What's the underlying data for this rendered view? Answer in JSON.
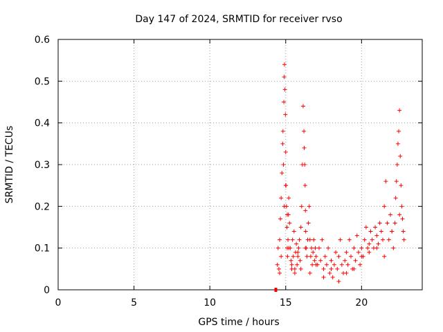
{
  "chart_data": {
    "type": "scatter",
    "title": "Day 147 of 2024, SRMTID for receiver rvso",
    "xlabel": "GPS time / hours",
    "ylabel": "SRMTID / TECUs",
    "xlim": [
      0,
      24
    ],
    "ylim": [
      0,
      0.6
    ],
    "xticks": [
      0,
      5,
      10,
      15,
      20
    ],
    "yticks": [
      0,
      0.1,
      0.2,
      0.3,
      0.4,
      0.5,
      0.6
    ],
    "xtick_labels": [
      "0",
      "5",
      "10",
      "15",
      "20"
    ],
    "ytick_labels": [
      "0",
      "0.1",
      "0.2",
      "0.3",
      "0.4",
      "0.5",
      "0.6"
    ],
    "grid": true,
    "series": [
      {
        "name": "SRMTID",
        "marker": "+",
        "color": "#ff0000",
        "x": [
          14.45,
          14.5,
          14.55,
          14.6,
          14.65,
          14.7,
          14.75,
          14.8,
          14.82,
          14.85,
          14.88,
          14.9,
          14.92,
          14.95,
          14.98,
          15.0,
          15.02,
          15.05,
          15.08,
          15.1,
          15.12,
          15.15,
          15.18,
          15.2,
          15.25,
          15.3,
          15.35,
          15.4,
          15.45,
          15.5,
          15.55,
          15.6,
          15.65,
          15.7,
          15.75,
          15.8,
          15.85,
          15.9,
          15.95,
          16.0,
          16.05,
          16.1,
          16.15,
          16.2,
          16.22,
          16.25,
          16.28,
          16.3,
          16.32,
          16.35,
          16.4,
          16.45,
          16.5,
          16.55,
          16.6,
          16.65,
          16.7,
          16.75,
          16.8,
          16.85,
          16.9,
          16.95,
          17.0,
          17.1,
          17.2,
          17.3,
          17.4,
          17.5,
          17.6,
          17.7,
          17.8,
          17.9,
          18.0,
          18.1,
          18.2,
          18.3,
          18.4,
          18.5,
          18.6,
          18.7,
          18.8,
          18.9,
          19.0,
          19.1,
          19.2,
          19.3,
          19.4,
          19.5,
          19.6,
          19.7,
          19.8,
          19.9,
          20.0,
          20.1,
          20.2,
          20.3,
          20.4,
          20.5,
          20.6,
          20.7,
          20.8,
          20.9,
          21.0,
          21.1,
          21.2,
          21.3,
          21.4,
          21.5,
          21.6,
          21.7,
          21.8,
          21.9,
          22.0,
          22.1,
          22.2,
          22.25,
          22.3,
          22.35,
          22.4,
          22.45,
          22.5,
          22.55,
          22.6,
          22.65,
          22.7,
          22.75,
          22.8,
          14.6,
          14.7,
          14.9,
          15.0,
          15.1,
          15.2,
          15.4,
          15.6,
          15.8,
          16.0,
          16.3,
          16.6,
          17.0,
          17.5,
          18.0,
          18.5,
          19.0,
          19.5,
          20.0,
          20.5,
          21.0,
          21.5,
          22.0,
          22.5
        ],
        "y": [
          0.06,
          0.1,
          0.05,
          0.12,
          0.17,
          0.22,
          0.28,
          0.35,
          0.38,
          0.3,
          0.45,
          0.51,
          0.54,
          0.48,
          0.42,
          0.33,
          0.25,
          0.2,
          0.15,
          0.1,
          0.08,
          0.12,
          0.18,
          0.22,
          0.16,
          0.1,
          0.07,
          0.05,
          0.12,
          0.08,
          0.14,
          0.05,
          0.09,
          0.11,
          0.06,
          0.08,
          0.1,
          0.12,
          0.07,
          0.15,
          0.2,
          0.3,
          0.44,
          0.38,
          0.34,
          0.3,
          0.25,
          0.19,
          0.14,
          0.1,
          0.08,
          0.12,
          0.16,
          0.2,
          0.12,
          0.08,
          0.1,
          0.06,
          0.09,
          0.12,
          0.07,
          0.1,
          0.08,
          0.06,
          0.1,
          0.07,
          0.12,
          0.05,
          0.08,
          0.06,
          0.1,
          0.04,
          0.07,
          0.03,
          0.06,
          0.09,
          0.05,
          0.08,
          0.12,
          0.06,
          0.04,
          0.07,
          0.09,
          0.06,
          0.12,
          0.08,
          0.05,
          0.1,
          0.07,
          0.13,
          0.09,
          0.06,
          0.1,
          0.08,
          0.12,
          0.15,
          0.1,
          0.09,
          0.14,
          0.12,
          0.1,
          0.15,
          0.13,
          0.11,
          0.16,
          0.14,
          0.12,
          0.2,
          0.26,
          0.16,
          0.12,
          0.18,
          0.14,
          0.1,
          0.16,
          0.22,
          0.26,
          0.3,
          0.35,
          0.38,
          0.43,
          0.32,
          0.25,
          0.2,
          0.17,
          0.14,
          0.12,
          0.04,
          0.08,
          0.2,
          0.25,
          0.18,
          0.1,
          0.06,
          0.04,
          0.09,
          0.05,
          0.1,
          0.04,
          0.06,
          0.03,
          0.05,
          0.02,
          0.04,
          0.05,
          0.08,
          0.11,
          0.1,
          0.08,
          0.14,
          0.18
        ],
        "extra_points": {
          "x": [
            14.35
          ],
          "y": [
            0.0
          ]
        }
      }
    ]
  }
}
